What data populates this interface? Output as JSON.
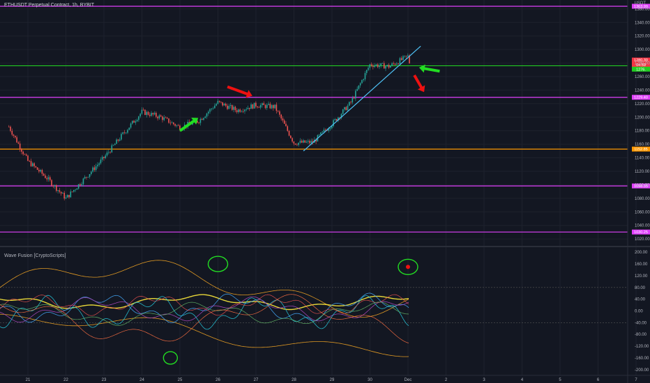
{
  "header": {
    "symbol_title": "ETHUSDT Perpetual Contract, 1h, BYBIT",
    "currency": "USDT"
  },
  "indicator": {
    "title": "Wave Fusion [CryptoScripts]"
  },
  "price_axis": {
    "ticks": [
      "1360.00",
      "1340.00",
      "1320.00",
      "1300.00",
      "1280.00",
      "1260.00",
      "1240.00",
      "1220.00",
      "1200.00",
      "1180.00",
      "1160.00",
      "1140.00",
      "1120.00",
      "1100.00",
      "1080.00",
      "1060.00",
      "1040.00",
      "1020.00"
    ]
  },
  "osc_axis": {
    "ticks": [
      "200.00",
      "160.00",
      "120.00",
      "80.00",
      "40.00",
      "0.00",
      "-40.00",
      "-80.00",
      "-120.00",
      "-160.00",
      "-200.00"
    ]
  },
  "time_axis": {
    "labels": [
      "21",
      "22",
      "23",
      "24",
      "25",
      "26",
      "27",
      "28",
      "29",
      "30",
      "Dec",
      "2",
      "3",
      "4",
      "5",
      "6",
      "7"
    ]
  },
  "level_labels": [
    {
      "text": "1363.99",
      "color": "#e040fb"
    },
    {
      "text": "1280.30",
      "color": "#f23645"
    },
    {
      "text": "04:59",
      "color": "#f23645"
    },
    {
      "text": "1276.",
      "color": "#22cc22"
    },
    {
      "text": "1229.40",
      "color": "#e040fb"
    },
    {
      "text": "1152.85",
      "color": "#ff9800"
    },
    {
      "text": "1098.35",
      "color": "#e040fb"
    },
    {
      "text": "1030.25",
      "color": "#e040fb"
    }
  ],
  "colors": {
    "up": "#26a69a",
    "down": "#ef5350",
    "magenta_level": "#e040fb",
    "green_level": "#22cc22",
    "orange_level": "#ff9800",
    "trendline": "#4fc3f7",
    "arrow_green": "#22dd22",
    "arrow_red": "#ee1111"
  },
  "chart_data": [
    {
      "type": "candlestick",
      "title": "ETHUSDT Perpetual Contract, 1h, BYBIT",
      "ylabel": "USDT",
      "ylim": [
        1015,
        1365
      ],
      "x_ticks": [
        "21",
        "22",
        "23",
        "24",
        "25",
        "26",
        "27",
        "28",
        "29",
        "30",
        "Dec",
        "2",
        "3",
        "4",
        "5",
        "6",
        "7"
      ],
      "close_path": [
        {
          "date": "Nov 20 12:00",
          "price": 1186
        },
        {
          "date": "Nov 21 00:00",
          "price": 1135
        },
        {
          "date": "Nov 21 12:00",
          "price": 1110
        },
        {
          "date": "Nov 22 00:00",
          "price": 1080
        },
        {
          "date": "Nov 22 12:00",
          "price": 1110
        },
        {
          "date": "Nov 23 00:00",
          "price": 1140
        },
        {
          "date": "Nov 23 12:00",
          "price": 1175
        },
        {
          "date": "Nov 24 00:00",
          "price": 1208
        },
        {
          "date": "Nov 24 12:00",
          "price": 1200
        },
        {
          "date": "Nov 25 00:00",
          "price": 1185
        },
        {
          "date": "Nov 25 12:00",
          "price": 1195
        },
        {
          "date": "Nov 26 00:00",
          "price": 1222
        },
        {
          "date": "Nov 26 12:00",
          "price": 1210
        },
        {
          "date": "Nov 27 00:00",
          "price": 1218
        },
        {
          "date": "Nov 27 12:00",
          "price": 1215
        },
        {
          "date": "Nov 28 00:00",
          "price": 1162
        },
        {
          "date": "Nov 28 12:00",
          "price": 1163
        },
        {
          "date": "Nov 29 00:00",
          "price": 1190
        },
        {
          "date": "Nov 29 12:00",
          "price": 1222
        },
        {
          "date": "Nov 30 00:00",
          "price": 1278
        },
        {
          "date": "Nov 30 12:00",
          "price": 1275
        },
        {
          "date": "Dec 1 00:00",
          "price": 1290
        },
        {
          "date": "Dec 1 01:00",
          "price": 1280
        }
      ],
      "horizontal_levels": [
        {
          "price": 1363.99,
          "color": "magenta"
        },
        {
          "price": 1276,
          "color": "green"
        },
        {
          "price": 1229.4,
          "color": "magenta"
        },
        {
          "price": 1152.85,
          "color": "orange"
        },
        {
          "price": 1098.35,
          "color": "magenta"
        },
        {
          "price": 1030.25,
          "color": "magenta"
        }
      ],
      "trendline": {
        "from": {
          "date": "Nov 28 06:00",
          "price": 1150
        },
        "to": {
          "date": "Dec 1 08:00",
          "price": 1305
        }
      },
      "annotations": [
        {
          "type": "arrow",
          "color": "green",
          "direction": "up-right",
          "near": "Nov 25 12:00"
        },
        {
          "type": "arrow",
          "color": "red",
          "direction": "down-right",
          "near": "Nov 26 18:00"
        },
        {
          "type": "arrow",
          "color": "green",
          "direction": "left",
          "near": "Dec 1 06:00"
        },
        {
          "type": "arrow",
          "color": "red",
          "direction": "down",
          "near": "Dec 1 06:00"
        }
      ]
    },
    {
      "type": "line",
      "title": "Wave Fusion [CryptoScripts]",
      "ylim": [
        -210,
        210
      ],
      "y_ticks": [
        200,
        160,
        120,
        80,
        40,
        0,
        -40,
        -80,
        -120,
        -160,
        -200
      ],
      "annotations": [
        {
          "type": "circle",
          "color": "green",
          "near": "Nov 26 00:00",
          "value": 160
        },
        {
          "type": "circle",
          "color": "green",
          "near": "Dec 1 00:00",
          "value": 150
        },
        {
          "type": "circle",
          "color": "green",
          "near": "Nov 24 18:00",
          "value": -160
        }
      ]
    }
  ]
}
